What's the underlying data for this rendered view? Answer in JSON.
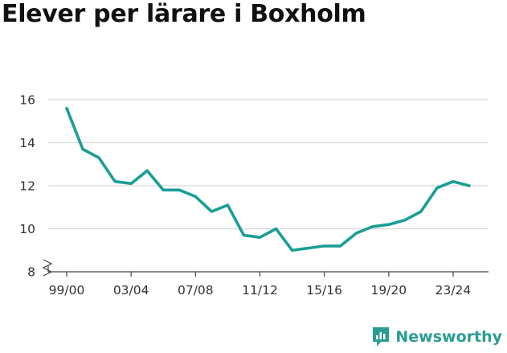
{
  "title": "Elever per lärare i Boxholm",
  "brand": {
    "name": "Newsworthy",
    "icon": "newsworthy-logo-icon",
    "color": "#2a9d92"
  },
  "chart_data": {
    "type": "line",
    "title": "Elever per lärare i Boxholm",
    "xlabel": "",
    "ylabel": "",
    "x": [
      "99/00",
      "00/01",
      "01/02",
      "02/03",
      "03/04",
      "04/05",
      "05/06",
      "06/07",
      "07/08",
      "08/09",
      "09/10",
      "10/11",
      "11/12",
      "12/13",
      "13/14",
      "14/15",
      "15/16",
      "16/17",
      "17/18",
      "18/19",
      "19/20",
      "20/21",
      "21/22",
      "22/23",
      "23/24",
      "24/25"
    ],
    "x_tick_labels": [
      "99/00",
      "03/04",
      "07/08",
      "11/12",
      "15/16",
      "19/20",
      "23/24"
    ],
    "series": [
      {
        "values": [
          15.6,
          13.7,
          13.3,
          12.2,
          12.1,
          12.7,
          11.8,
          11.8,
          11.5,
          10.8,
          11.1,
          9.7,
          9.6,
          10.0,
          9.0,
          9.1,
          9.2,
          9.2,
          9.8,
          10.1,
          10.2,
          10.4,
          10.8,
          11.9,
          12.2,
          12.0
        ],
        "color": "#1a9e96"
      }
    ],
    "yticks": [
      8,
      10,
      12,
      14,
      16
    ],
    "ylim": [
      8,
      16
    ],
    "y_axis_break": true,
    "grid": true,
    "gridline_color": "#d9d9d9"
  }
}
